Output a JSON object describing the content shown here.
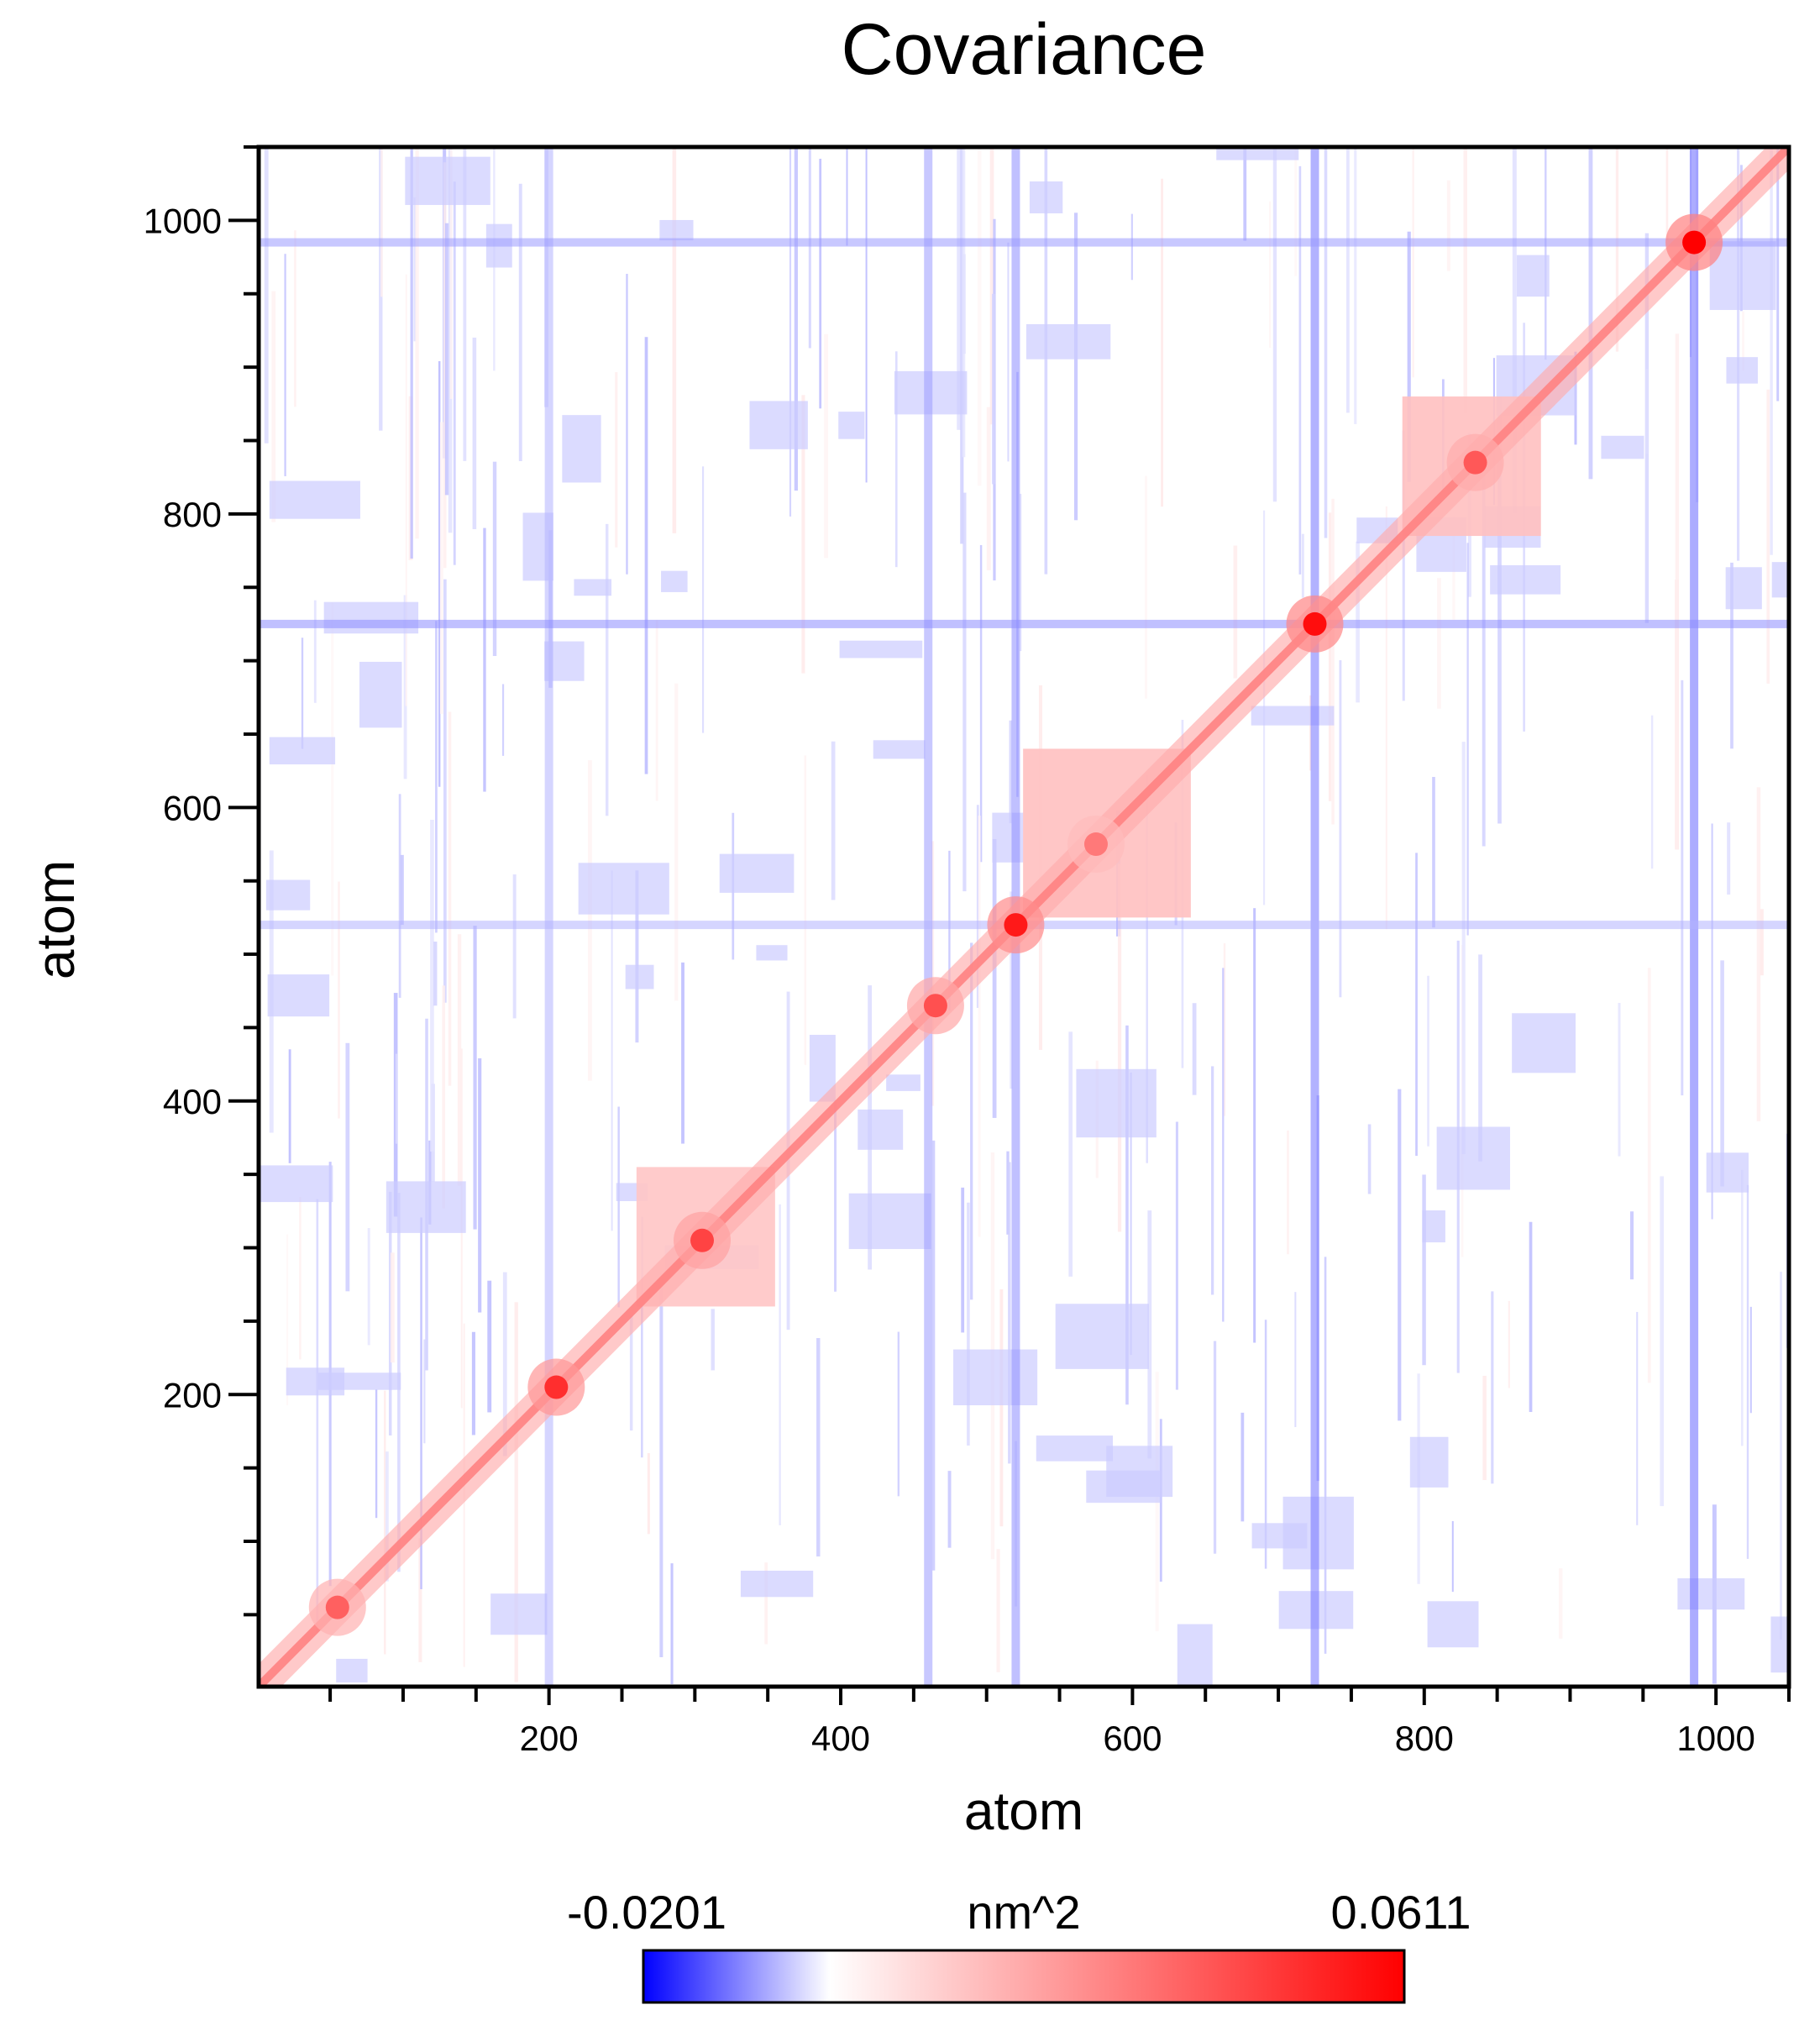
{
  "chart_data": {
    "type": "heatmap",
    "title": "Covariance",
    "xlabel": "atom",
    "ylabel": "atom",
    "xlim": [
      1,
      1050
    ],
    "ylim": [
      1,
      1050
    ],
    "x_ticks": [
      200,
      400,
      600,
      800,
      1000
    ],
    "y_ticks": [
      200,
      400,
      600,
      800,
      1000
    ],
    "x_minor_step": 50,
    "y_minor_step": 50,
    "grid": false,
    "colorbar": {
      "min_label": "-0.0201",
      "max_label": "0.0611",
      "unit": "nm^2",
      "min": -0.0201,
      "max": 0.0611,
      "zero_color": "#ffffff",
      "colors": [
        "#0000ff",
        "#ffffff",
        "#ff0000"
      ]
    },
    "diagonal_hotspots": [
      {
        "atom": 55,
        "value": 0.038
      },
      {
        "atom": 205,
        "value": 0.05
      },
      {
        "atom": 305,
        "value": 0.045
      },
      {
        "atom": 465,
        "value": 0.042
      },
      {
        "atom": 520,
        "value": 0.055
      },
      {
        "atom": 575,
        "value": 0.032
      },
      {
        "atom": 725,
        "value": 0.058
      },
      {
        "atom": 835,
        "value": 0.04
      },
      {
        "atom": 985,
        "value": 0.0611
      }
    ],
    "correlated_blocks": [
      {
        "from": 260,
        "to": 355,
        "value": 0.014
      },
      {
        "from": 525,
        "to": 640,
        "value": 0.015
      },
      {
        "from": 785,
        "to": 880,
        "value": 0.015
      }
    ],
    "negative_bands": [
      {
        "axis": "x",
        "atom": 200,
        "value": -0.006
      },
      {
        "axis": "x",
        "atom": 460,
        "value": -0.008
      },
      {
        "axis": "x",
        "atom": 520,
        "value": -0.009
      },
      {
        "axis": "x",
        "atom": 725,
        "value": -0.011
      },
      {
        "axis": "x",
        "atom": 985,
        "value": -0.012
      },
      {
        "axis": "y",
        "atom": 985,
        "value": -0.008
      },
      {
        "axis": "y",
        "atom": 725,
        "value": -0.009
      },
      {
        "axis": "y",
        "atom": 520,
        "value": -0.006
      }
    ]
  }
}
